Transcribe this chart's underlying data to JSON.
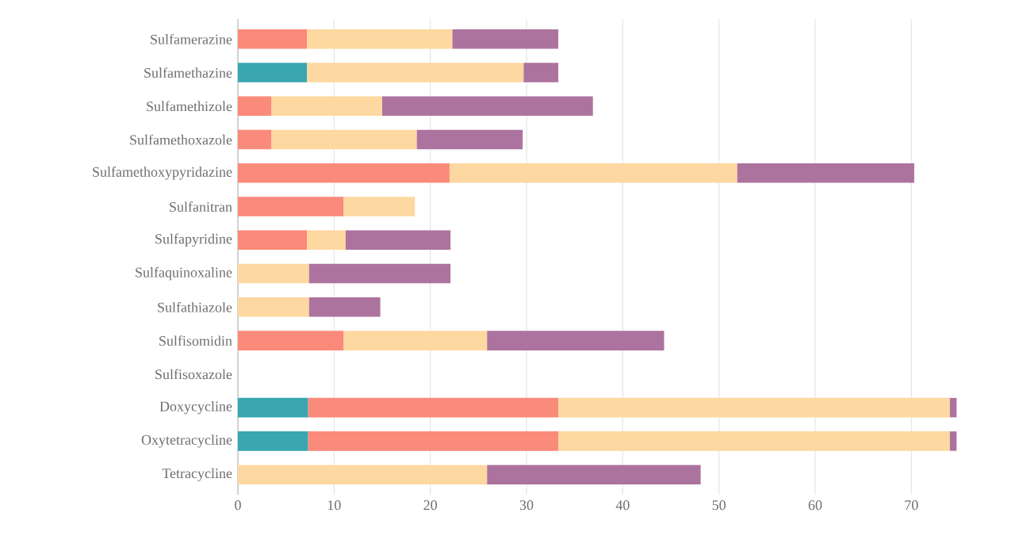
{
  "chart_data": {
    "type": "bar",
    "orientation": "horizontal",
    "stacked": true,
    "categories": [
      "Sulfamerazine",
      "Sulfamethazine",
      "Sulfamethizole",
      "Sulfamethoxazole",
      "Sulfamethoxypyridazine",
      "Sulfanitran",
      "Sulfapyridine",
      "Sulfaquinoxaline",
      "Sulfathiazole",
      "Sulfisomidin",
      "Sulfisoxazole",
      "Doxycycline",
      "Oxytetracycline",
      "Tetracycline"
    ],
    "series": [
      {
        "color": "#3aa6b0",
        "values": [
          null,
          7.2,
          null,
          null,
          null,
          null,
          null,
          null,
          null,
          null,
          null,
          7.3,
          7.3,
          null
        ]
      },
      {
        "color": "#fa8a7a",
        "values": [
          7.2,
          null,
          3.5,
          3.5,
          22.0,
          11.0,
          7.2,
          null,
          null,
          11.0,
          null,
          26.0,
          26.0,
          null
        ]
      },
      {
        "color": "#fdd8a0",
        "values": [
          15.1,
          22.5,
          11.5,
          15.1,
          29.9,
          7.4,
          4.0,
          7.4,
          7.4,
          14.9,
          null,
          40.7,
          40.7,
          25.9
        ]
      },
      {
        "color": "#ad739f",
        "values": [
          11.0,
          3.6,
          21.9,
          11.0,
          18.4,
          null,
          10.9,
          14.7,
          7.4,
          18.4,
          null,
          0.7,
          0.7,
          22.2
        ]
      }
    ],
    "xlim": [
      0,
      75
    ],
    "xticks": [
      0,
      10,
      20,
      30,
      40,
      50,
      60,
      70
    ],
    "grid": "x"
  }
}
